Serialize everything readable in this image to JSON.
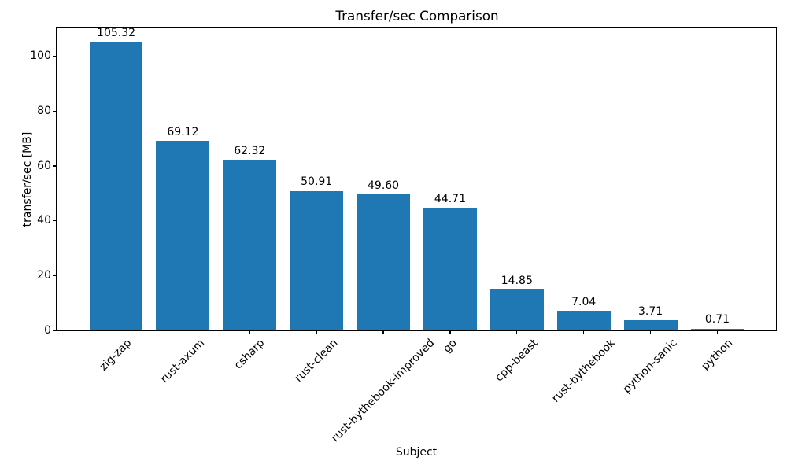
{
  "chart_data": {
    "type": "bar",
    "title": "Transfer/sec Comparison",
    "xlabel": "Subject",
    "ylabel": "transfer/sec [MB]",
    "categories": [
      "zig-zap",
      "rust-axum",
      "csharp",
      "rust-clean",
      "rust-bythebook-improved",
      "go",
      "cpp-beast",
      "rust-bythebook",
      "python-sanic",
      "python"
    ],
    "values": [
      105.32,
      69.12,
      62.32,
      50.91,
      49.6,
      44.71,
      14.85,
      7.04,
      3.71,
      0.71
    ],
    "value_labels": [
      "105.32",
      "69.12",
      "62.32",
      "50.91",
      "49.60",
      "44.71",
      "14.85",
      "7.04",
      "3.71",
      "0.71"
    ],
    "yticks": [
      0,
      20,
      40,
      60,
      80,
      100
    ],
    "ylim": [
      0,
      110.59
    ],
    "bar_color": "#1f77b4",
    "text_color": "#000000",
    "grid": false,
    "legend": "none",
    "x_tick_rotation_deg": 45
  }
}
